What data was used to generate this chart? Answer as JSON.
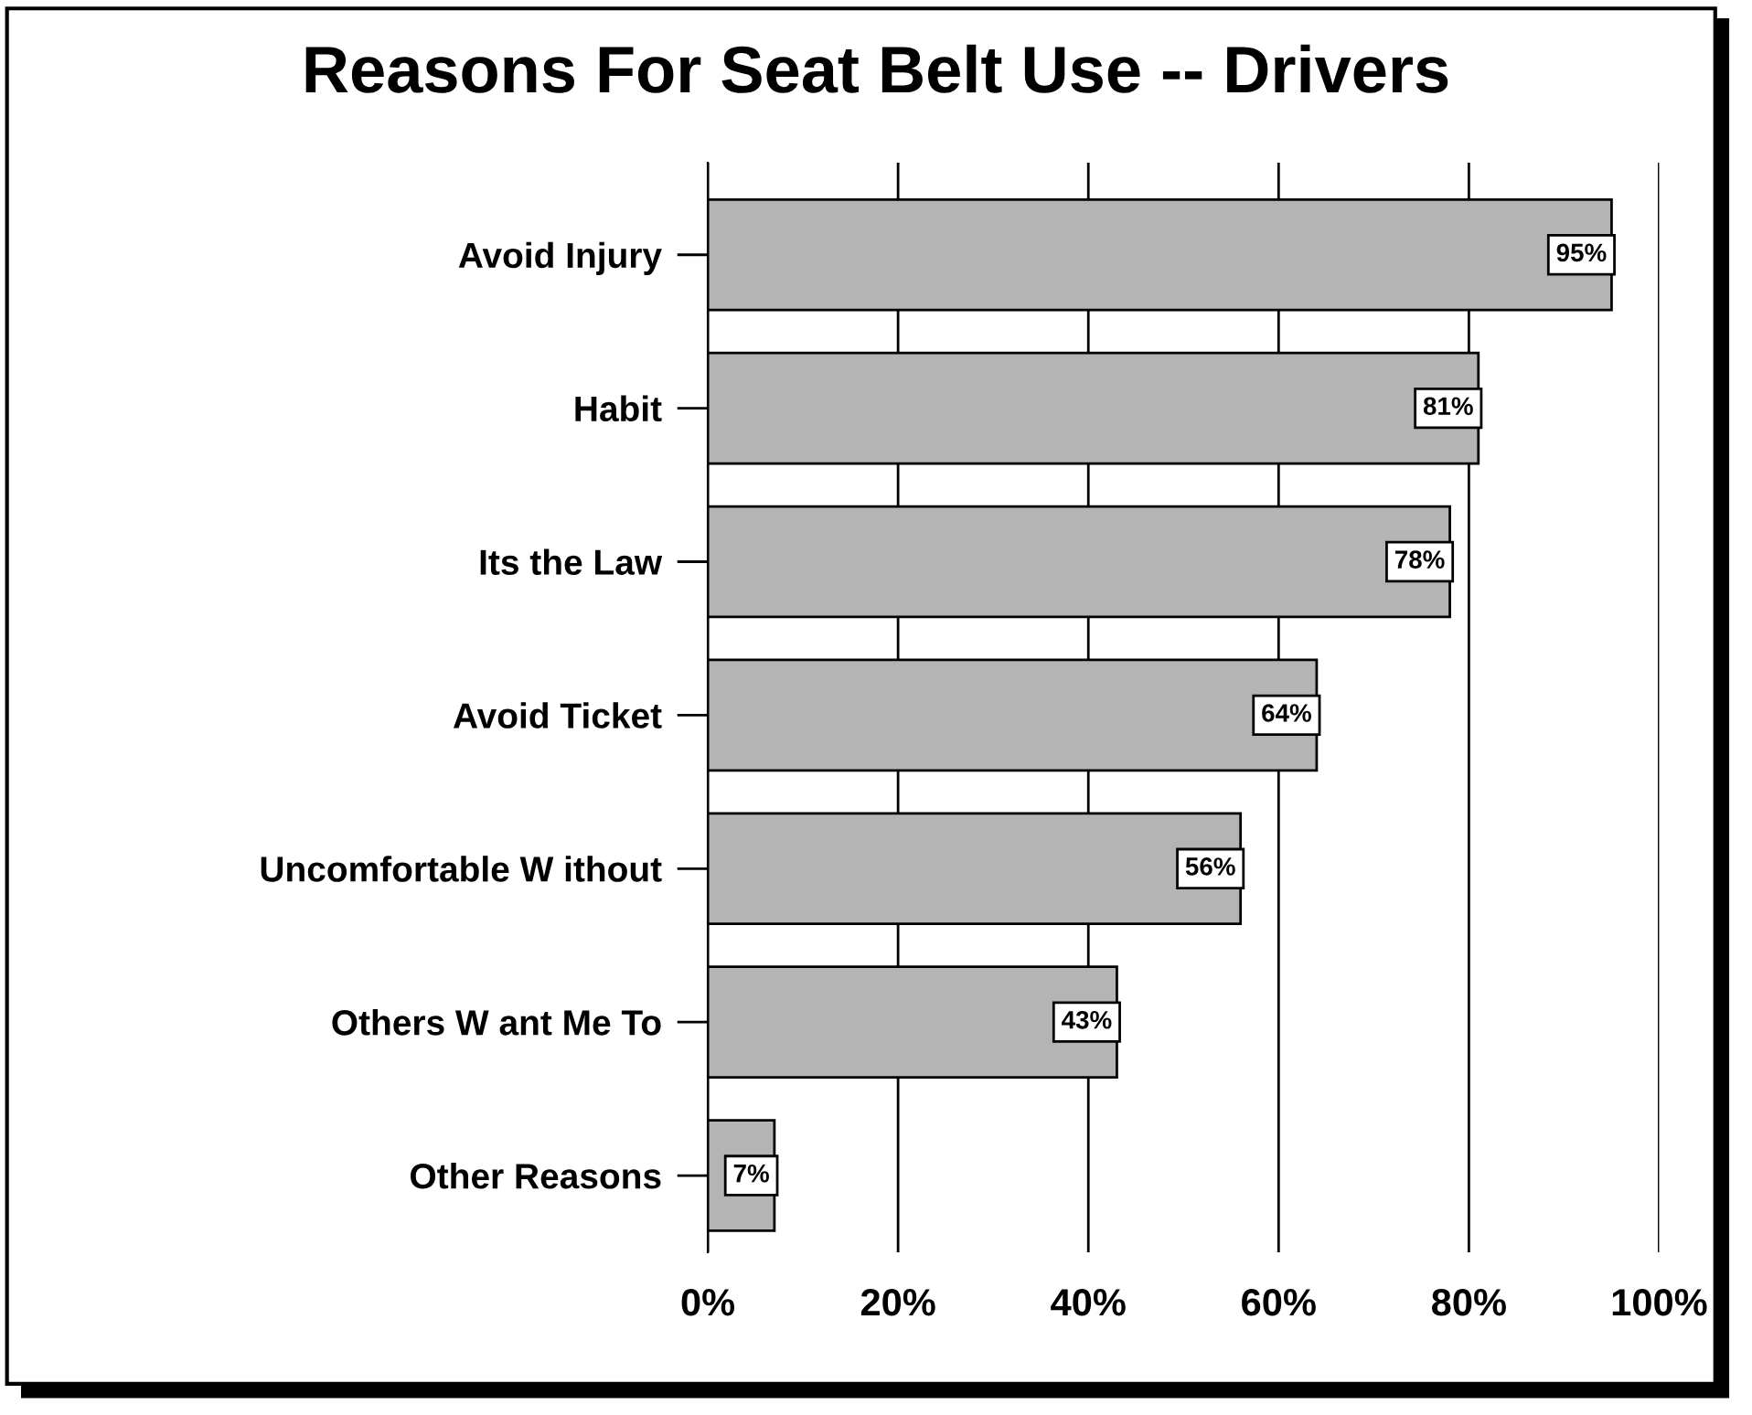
{
  "chart_data": {
    "type": "bar",
    "orientation": "horizontal",
    "title": "Reasons For Seat Belt Use -- Drivers",
    "categories": [
      "Avoid Injury",
      "Habit",
      "Its the Law",
      "Avoid Ticket",
      "Uncomfortable W ithout",
      "Others W ant Me To",
      "Other Reasons"
    ],
    "values": [
      95,
      81,
      78,
      64,
      56,
      43,
      7
    ],
    "value_labels": [
      "95%",
      "81%",
      "78%",
      "64%",
      "56%",
      "43%",
      "7%"
    ],
    "color": "#b4b4b4",
    "xlim": [
      0,
      100
    ],
    "xticks": [
      {
        "value": 0,
        "label": "0%"
      },
      {
        "value": 20,
        "label": "20%"
      },
      {
        "value": 40,
        "label": "40%"
      },
      {
        "value": 60,
        "label": "60%"
      },
      {
        "value": 80,
        "label": "80%"
      },
      {
        "value": 100,
        "label": "100%"
      }
    ],
    "grid": "x",
    "legend": false
  }
}
